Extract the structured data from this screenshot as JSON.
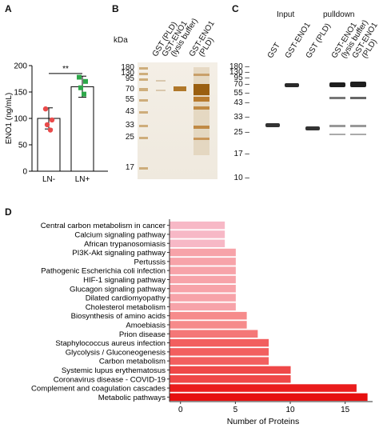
{
  "panels": {
    "A": {
      "letter": "A",
      "significance": "**",
      "chart_data": {
        "type": "bar",
        "categories": [
          "LN-",
          "LN+"
        ],
        "values": [
          100,
          160
        ],
        "errors": [
          20,
          20
        ],
        "points": [
          [
            118,
            97,
            88,
            78
          ],
          [
            178,
            170,
            158,
            146
          ]
        ],
        "point_colors": [
          "#e94b4b",
          "#2ea84a"
        ],
        "ylabel": "ENO1 (ng/mL)",
        "ylim": [
          0,
          200
        ],
        "yticks": [
          0,
          50,
          100,
          150,
          200
        ]
      }
    },
    "B": {
      "letter": "B",
      "kda_title": "kDa",
      "markers": [
        "180",
        "130",
        "95",
        "70",
        "55",
        "43",
        "33",
        "25",
        "17"
      ],
      "lanes": [
        "GST (PLD)",
        "GST-ENO1",
        "(lysis buffer)",
        "GST-ENO1",
        "(PLD)"
      ]
    },
    "C": {
      "letter": "C",
      "input_label": "Input",
      "pulldown_label": "pulldown",
      "markers": [
        "180",
        "130",
        "95",
        "70",
        "55",
        "43",
        "33",
        "25",
        "17",
        "10"
      ],
      "lanes": [
        "GST",
        "GST-ENO1",
        "GST (PLD)",
        "GST-ENO1",
        "(lysis buffer)",
        "GST-ENO1",
        "(PLD)"
      ]
    },
    "D": {
      "letter": "D",
      "chart_data": {
        "type": "bar",
        "orientation": "horizontal",
        "categories": [
          "Central carbon metabolism in cancer",
          "Calcium signaling pathway",
          "African trypanosomiasis",
          "PI3K-Akt signaling pathway",
          "Pertussis",
          "Pathogenic Escherichia coli infection",
          "HIF-1 signaling pathway",
          "Glucagon signaling pathway",
          "Dilated cardiomyopathy",
          "Cholesterol metabolism",
          "Biosynthesis of amino acids",
          "Amoebiasis",
          "Prion disease",
          "Staphylococcus aureus infection",
          "Glycolysis / Gluconeogenesis",
          "Carbon metabolism",
          "Systemic lupus erythematosus",
          "Coronavirus disease - COVID-19",
          "Complement and coagulation cascades",
          "Metabolic pathways"
        ],
        "values": [
          4,
          4,
          4,
          5,
          5,
          5,
          5,
          5,
          5,
          5,
          6,
          6,
          7,
          8,
          8,
          8,
          10,
          10,
          16,
          17
        ],
        "colors": [
          "#f7b8c6",
          "#f7b8c6",
          "#f7b8c6",
          "#f7a3a9",
          "#f7a3a9",
          "#f7a3a9",
          "#f7a3a9",
          "#f7a3a9",
          "#f7a3a9",
          "#f7a3a9",
          "#f68b8b",
          "#f68b8b",
          "#f47777",
          "#f25f5f",
          "#f25f5f",
          "#f25f5f",
          "#ef4848",
          "#ef4848",
          "#ea1c1c",
          "#e60f0f"
        ],
        "xlabel": "Number of Proteins",
        "xlim": [
          -1,
          17.5
        ],
        "xticks": [
          0,
          5,
          10,
          15
        ]
      }
    }
  }
}
